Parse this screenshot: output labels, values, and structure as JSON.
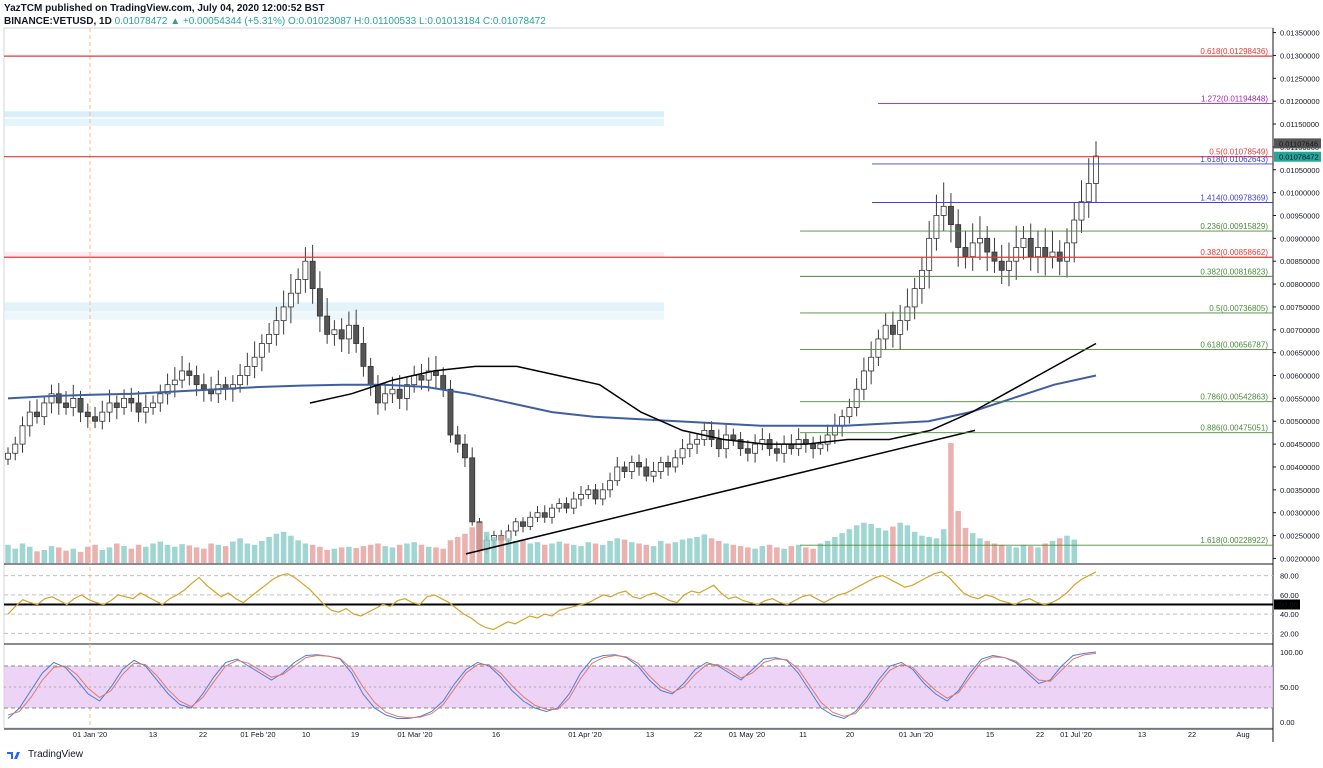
{
  "header": {
    "line1": "YazTCM published on TradingView.com, July 04, 2020 12:00:52 BST",
    "symbol": "BINANCE:VETUSD, 1D",
    "ohlc_text": "0.01078472 ▲ +0.00054344 (+5.31%) O:0.01023087 H:0.01100533 L:0.01013184 C:0.01078472"
  },
  "footer": {
    "brand": "TradingView"
  },
  "colors": {
    "up": "#26a69a",
    "down": "#ef5350",
    "ma_black": "#000000",
    "ma_blue": "#3f5f9f",
    "rsi": "#d4a32a",
    "stoch_fill": "#e8c8f4"
  },
  "chart_data": [
    {
      "type": "candlestick",
      "title": "",
      "ylim": [
        0.0019,
        0.0136
      ],
      "y_scale": "linear",
      "x_tick_labels": [
        "01 Jan '20",
        "13",
        "22",
        "01 Feb '20",
        "10",
        "19",
        "01 Mar '20",
        "16",
        "01 Apr '20",
        "13",
        "22",
        "01 May '20",
        "11",
        "20",
        "01 Jun '20",
        "15",
        "22",
        "01 Jul '20",
        "13",
        "22",
        "Aug"
      ],
      "y_tick_labels": [
        "0.01350000",
        "0.01300000",
        "0.01250000",
        "0.01200000",
        "0.01150000",
        "0.01100000",
        "0.01050000",
        "0.01000000",
        "0.00950000",
        "0.00900000",
        "0.00850000",
        "0.00800000",
        "0.00750000",
        "0.00700000",
        "0.00650000",
        "0.00600000",
        "0.00550000",
        "0.00500000",
        "0.00450000",
        "0.00400000",
        "0.00350000",
        "0.00300000",
        "0.00250000",
        "0.00200000"
      ],
      "price_labels": [
        "0.01107646",
        "0.01078472"
      ],
      "fib_levels": [
        {
          "label": "0.618(0.01298436)",
          "value": 0.01298436,
          "color": "#e53935"
        },
        {
          "label": "1.272(0.01194848)",
          "value": 0.01194848,
          "color": "#9c27b0"
        },
        {
          "label": "0.5(0.01078549)",
          "value": 0.01078549,
          "color": "#e53935"
        },
        {
          "label": "1.618(0.01062643)",
          "value": 0.01062643,
          "color": "#3f3fd4"
        },
        {
          "label": "1.414(0.00978369)",
          "value": 0.00978369,
          "color": "#3f3fd4"
        },
        {
          "label": "0.236(0.00915829)",
          "value": 0.00915829,
          "color": "#4c8a3a"
        },
        {
          "label": "0.382(0.00858662)",
          "value": 0.00858662,
          "color": "#e53935"
        },
        {
          "label": "0.382(0.00816823)",
          "value": 0.00816823,
          "color": "#4c8a3a"
        },
        {
          "label": "0.5(0.00736805)",
          "value": 0.00736805,
          "color": "#4c8a3a"
        },
        {
          "label": "0.618(0.00656787)",
          "value": 0.00656787,
          "color": "#4c8a3a"
        },
        {
          "label": "0.786(0.00542863)",
          "value": 0.00542863,
          "color": "#4c8a3a"
        },
        {
          "label": "0.886(0.00475051)",
          "value": 0.00475051,
          "color": "#4c8a3a"
        },
        {
          "label": "1.618(0.00228922)",
          "value": 0.00228922,
          "color": "#4c8a3a"
        }
      ],
      "close_series": [
        0.0043,
        0.0045,
        0.0049,
        0.0052,
        0.0051,
        0.0054,
        0.0056,
        0.0054,
        0.0053,
        0.0055,
        0.0052,
        0.0051,
        0.005,
        0.0052,
        0.0054,
        0.0053,
        0.0055,
        0.0054,
        0.0052,
        0.0053,
        0.0054,
        0.0056,
        0.0058,
        0.0059,
        0.0061,
        0.006,
        0.0058,
        0.0057,
        0.0056,
        0.0058,
        0.0057,
        0.0058,
        0.006,
        0.0062,
        0.0064,
        0.0067,
        0.0069,
        0.0072,
        0.0075,
        0.0078,
        0.0081,
        0.0085,
        0.0079,
        0.0073,
        0.0069,
        0.007,
        0.0068,
        0.0071,
        0.0067,
        0.0062,
        0.0058,
        0.0054,
        0.0056,
        0.0057,
        0.0055,
        0.0058,
        0.006,
        0.0059,
        0.0061,
        0.006,
        0.0057,
        0.0047,
        0.0045,
        0.0042,
        0.0028,
        0.0022,
        0.0024,
        0.0025,
        0.0024,
        0.0026,
        0.0028,
        0.0027,
        0.0029,
        0.003,
        0.0029,
        0.0031,
        0.0032,
        0.0031,
        0.0033,
        0.0034,
        0.0035,
        0.0033,
        0.0035,
        0.0037,
        0.004,
        0.0039,
        0.0041,
        0.004,
        0.0038,
        0.0039,
        0.0041,
        0.004,
        0.0042,
        0.0044,
        0.0045,
        0.0046,
        0.0048,
        0.0046,
        0.0044,
        0.0047,
        0.0046,
        0.0044,
        0.0043,
        0.0045,
        0.0046,
        0.0044,
        0.0043,
        0.0045,
        0.0044,
        0.0046,
        0.0045,
        0.0044,
        0.0045,
        0.0047,
        0.0049,
        0.0051,
        0.0053,
        0.0057,
        0.0061,
        0.0064,
        0.0068,
        0.0071,
        0.0069,
        0.0072,
        0.0075,
        0.0079,
        0.0083,
        0.009,
        0.0095,
        0.0097,
        0.0093,
        0.0088,
        0.0086,
        0.0089,
        0.009,
        0.0087,
        0.0085,
        0.0083,
        0.0085,
        0.0088,
        0.009,
        0.0086,
        0.0088,
        0.0086,
        0.0087,
        0.0085,
        0.0089,
        0.0094,
        0.0098,
        0.0102,
        0.0108
      ],
      "ma200_series": [
        0.0055,
        0.00555,
        0.00558,
        0.0056,
        0.00565,
        0.0057,
        0.00575,
        0.00578,
        0.0058,
        0.0058,
        0.00575,
        0.0056,
        0.0054,
        0.0052,
        0.0051,
        0.00505,
        0.005,
        0.00495,
        0.0049,
        0.0049,
        0.0049,
        0.00495,
        0.005,
        0.0052,
        0.0055,
        0.0058,
        0.006
      ],
      "ma50_series": [
        0.0054,
        0.0056,
        0.0059,
        0.0061,
        0.0062,
        0.0062,
        0.006,
        0.0058,
        0.0052,
        0.0048,
        0.0046,
        0.0045,
        0.0045,
        0.0046,
        0.0046,
        0.0048,
        0.0052,
        0.0057,
        0.0062,
        0.0067
      ],
      "trendline": {
        "from": 0.0021,
        "to": 0.0048
      },
      "volume": [
        28,
        22,
        30,
        25,
        18,
        20,
        26,
        24,
        19,
        22,
        17,
        25,
        28,
        20,
        24,
        30,
        26,
        22,
        28,
        25,
        30,
        33,
        28,
        25,
        29,
        27,
        24,
        22,
        30,
        28,
        26,
        33,
        38,
        30,
        28,
        34,
        40,
        45,
        48,
        42,
        35,
        30,
        28,
        25,
        20,
        22,
        24,
        25,
        23,
        26,
        28,
        30,
        26,
        24,
        28,
        30,
        32,
        28,
        25,
        24,
        22,
        35,
        40,
        45,
        55,
        62,
        48,
        40,
        42,
        38,
        34,
        36,
        30,
        32,
        28,
        30,
        33,
        30,
        28,
        26,
        32,
        30,
        28,
        34,
        38,
        36,
        32,
        30,
        28,
        26,
        34,
        30,
        32,
        36,
        38,
        40,
        44,
        38,
        34,
        30,
        28,
        26,
        24,
        22,
        26,
        28,
        24,
        22,
        26,
        28,
        24,
        22,
        30,
        34,
        40,
        46,
        52,
        58,
        62,
        60,
        54,
        50,
        56,
        62,
        58,
        48,
        42,
        40,
        38,
        52,
        66,
        80,
        54,
        46,
        38,
        34,
        30,
        28,
        26,
        24,
        28,
        26,
        24,
        30,
        34,
        38,
        42,
        36
      ],
      "volume_highlight_index": 130
    },
    {
      "type": "line",
      "title": "",
      "name_on_chart": "",
      "ylim": [
        10,
        90
      ],
      "y_tick_labels": [
        "80.00",
        "60.00",
        "40.00",
        "20.00"
      ],
      "highlight_label": "50.00",
      "values": [
        40,
        48,
        55,
        52,
        50,
        56,
        58,
        54,
        50,
        56,
        60,
        55,
        52,
        50,
        54,
        60,
        58,
        56,
        62,
        58,
        54,
        50,
        56,
        60,
        65,
        72,
        78,
        70,
        64,
        58,
        62,
        56,
        52,
        58,
        64,
        70,
        76,
        80,
        82,
        78,
        72,
        66,
        58,
        50,
        44,
        42,
        46,
        40,
        38,
        42,
        46,
        50,
        48,
        54,
        56,
        52,
        50,
        58,
        60,
        56,
        52,
        46,
        40,
        36,
        30,
        26,
        24,
        28,
        32,
        30,
        34,
        38,
        36,
        40,
        38,
        44,
        46,
        48,
        50,
        52,
        56,
        60,
        58,
        62,
        64,
        58,
        56,
        60,
        62,
        58,
        54,
        52,
        60,
        64,
        62,
        66,
        70,
        62,
        56,
        58,
        54,
        52,
        50,
        54,
        56,
        52,
        50,
        54,
        58,
        60,
        56,
        52,
        56,
        60,
        62,
        66,
        70,
        74,
        78,
        80,
        76,
        72,
        68,
        70,
        74,
        78,
        82,
        84,
        78,
        70,
        62,
        58,
        56,
        60,
        58,
        54,
        52,
        50,
        54,
        56,
        52,
        50,
        52,
        56,
        62,
        70,
        76,
        80,
        84
      ]
    },
    {
      "type": "line",
      "title": "",
      "ylim": [
        0,
        100
      ],
      "y_tick_labels": [
        "100.00",
        "50.00",
        "0.00"
      ],
      "band": [
        20,
        80
      ],
      "k_values": [
        5,
        20,
        45,
        70,
        85,
        78,
        60,
        40,
        30,
        50,
        75,
        88,
        80,
        60,
        40,
        25,
        20,
        40,
        65,
        85,
        90,
        80,
        70,
        60,
        70,
        85,
        95,
        96,
        94,
        90,
        70,
        40,
        20,
        10,
        5,
        5,
        8,
        15,
        30,
        55,
        75,
        85,
        80,
        65,
        45,
        30,
        20,
        15,
        20,
        40,
        70,
        90,
        95,
        96,
        92,
        80,
        60,
        45,
        40,
        55,
        75,
        85,
        80,
        70,
        60,
        75,
        90,
        92,
        88,
        70,
        45,
        20,
        10,
        5,
        15,
        35,
        60,
        80,
        85,
        75,
        55,
        40,
        30,
        45,
        70,
        90,
        95,
        92,
        85,
        70,
        55,
        60,
        80,
        95,
        98,
        100
      ],
      "d_values": [
        10,
        15,
        35,
        60,
        78,
        80,
        68,
        48,
        35,
        45,
        68,
        84,
        82,
        66,
        46,
        30,
        22,
        35,
        58,
        80,
        88,
        84,
        74,
        64,
        68,
        80,
        92,
        95,
        94,
        91,
        76,
        50,
        28,
        14,
        8,
        6,
        7,
        12,
        25,
        48,
        70,
        82,
        82,
        70,
        52,
        36,
        24,
        18,
        18,
        34,
        62,
        84,
        92,
        95,
        93,
        84,
        66,
        50,
        42,
        50,
        68,
        82,
        82,
        74,
        63,
        70,
        85,
        90,
        89,
        76,
        52,
        28,
        14,
        8,
        12,
        30,
        54,
        74,
        82,
        78,
        60,
        45,
        34,
        42,
        64,
        86,
        93,
        92,
        87,
        74,
        60,
        58,
        74,
        90,
        96,
        98
      ]
    }
  ]
}
